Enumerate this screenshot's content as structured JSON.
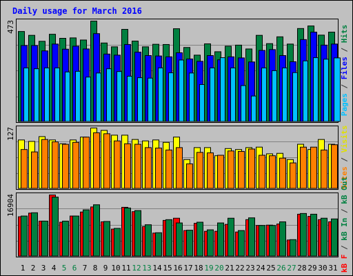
{
  "chart_data": {
    "type": "bar",
    "title": "Daily usage for March 2016",
    "days": [
      "1",
      "2",
      "3",
      "4",
      "5",
      "6",
      "7",
      "8",
      "9",
      "10",
      "11",
      "12",
      "13",
      "14",
      "15",
      "16",
      "17",
      "18",
      "19",
      "20",
      "21",
      "22",
      "23",
      "24",
      "25",
      "26",
      "27",
      "28",
      "29",
      "30",
      "31"
    ],
    "weekend_days": [
      "5",
      "6",
      "12",
      "13",
      "19",
      "20",
      "26",
      "27"
    ],
    "panels": [
      {
        "id": "hits",
        "max_label": "473",
        "ymax": 473,
        "ylabel_parts": [
          {
            "text": "Pages",
            "color": "#00c0ff"
          },
          {
            "text": " / ",
            "color": "#333333"
          },
          {
            "text": "Files",
            "color": "#0000ff"
          },
          {
            "text": " / ",
            "color": "#333333"
          },
          {
            "text": "Hits",
            "color": "#008040"
          }
        ],
        "series": [
          {
            "name": "Hits",
            "color": "#008040",
            "values": [
              424,
              406,
              378,
              411,
              392,
              394,
              384,
              473,
              370,
              352,
              434,
              379,
              352,
              364,
              363,
              437,
              349,
              313,
              366,
              329,
              355,
              360,
              342,
              406,
              367,
              399,
              365,
              438,
              450,
              407,
              421
            ]
          },
          {
            "name": "Files",
            "color": "#0000ff",
            "values": [
              358,
              358,
              333,
              365,
              341,
              355,
              342,
              414,
              318,
              313,
              363,
              327,
              311,
              309,
              305,
              324,
              295,
              284,
              311,
              291,
              305,
              300,
              281,
              335,
              339,
              311,
              282,
              386,
              421,
              360,
              365
            ]
          },
          {
            "name": "Pages",
            "color": "#00c0ff",
            "values": [
              253,
              249,
              253,
              253,
              234,
              237,
              210,
              229,
              249,
              236,
              214,
              207,
              205,
              253,
              230,
              290,
              229,
              175,
              253,
              301,
              253,
              170,
              121,
              253,
              240,
              253,
              231,
              286,
              301,
              294,
              300
            ]
          }
        ]
      },
      {
        "id": "visits",
        "max_label": "127",
        "ymax": 127,
        "ylabel_parts": [
          {
            "text": "Sites",
            "color": "#ff8000"
          },
          {
            "text": " / ",
            "color": "#333333"
          },
          {
            "text": "Visits",
            "color": "#e0e000"
          }
        ],
        "series": [
          {
            "name": "Visits",
            "color": "#ffff00",
            "values": [
              102,
              99,
              109,
              102,
              94,
              102,
              108,
              127,
              122,
              112,
              112,
              103,
              100,
              102,
              97,
              108,
              61,
              86,
              86,
              69,
              84,
              82,
              86,
              87,
              73,
              74,
              61,
              93,
              82,
              103,
              93
            ]
          },
          {
            "name": "Sites",
            "color": "#ff8000",
            "values": [
              82,
              77,
              103,
              98,
              93,
              97,
              108,
              117,
              115,
              100,
              94,
              93,
              86,
              85,
              81,
              86,
              52,
              76,
              75,
              70,
              79,
              78,
              83,
              70,
              69,
              64,
              54,
              87,
              87,
              81,
              92
            ]
          }
        ]
      },
      {
        "id": "kbytes",
        "max_label": "16904",
        "ymax": 16904,
        "ylabel_parts": [
          {
            "text": "kB F",
            "color": "#ff0000"
          },
          {
            "text": " / ",
            "color": "#333333"
          },
          {
            "text": "kB In",
            "color": "#008040"
          },
          {
            "text": " / ",
            "color": "#333333"
          },
          {
            "text": "kB Out",
            "color": "#008040"
          }
        ],
        "series": [
          {
            "name": "kB F",
            "color": "#ff0000",
            "values": [
              10900,
              11900,
              9700,
              16904,
              9400,
              11100,
              12200,
              13600,
              9500,
              7500,
              13500,
              12300,
              8200,
              6400,
              9900,
              10500,
              7100,
              9100,
              6900,
              6900,
              8800,
              6700,
              10100,
              8500,
              8600,
              8900,
              4500,
              11600,
              11000,
              10100,
              9500
            ]
          },
          {
            "name": "kB In",
            "color": "#008040",
            "values": [
              11100,
              12000,
              9700,
              16300,
              9700,
              11100,
              12800,
              14200,
              9600,
              7700,
              13300,
              12600,
              8700,
              6500,
              10100,
              9200,
              7200,
              9400,
              7300,
              9200,
              10500,
              7100,
              10600,
              8500,
              8500,
              9500,
              4600,
              11800,
              11600,
              10500,
              10300
            ]
          }
        ]
      }
    ]
  },
  "colors": {
    "frame_bg": "#c0c0c0",
    "title": "#0000ff",
    "weekday_label": "#000000",
    "weekend_label": "#008040"
  }
}
